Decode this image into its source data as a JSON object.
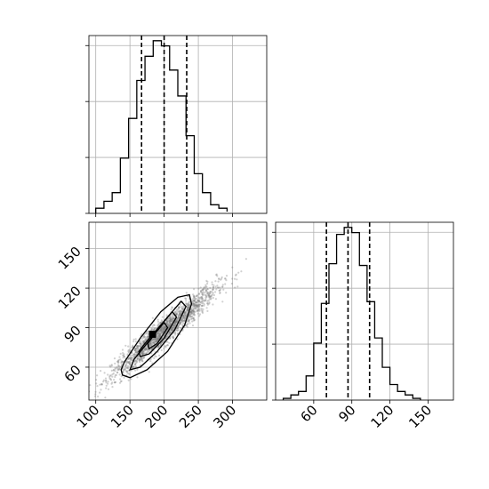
{
  "chart_data": [
    {
      "id": "hist-x",
      "type": "histogram",
      "variable_range": [
        90,
        350
      ],
      "bins": {
        "edges": [
          100,
          112,
          124,
          136,
          148,
          160,
          172,
          184,
          196,
          208,
          220,
          232,
          244,
          256,
          268,
          280,
          292
        ],
        "counts": [
          0.03,
          0.07,
          0.12,
          0.32,
          0.55,
          0.77,
          0.91,
          1.0,
          0.97,
          0.83,
          0.68,
          0.45,
          0.23,
          0.12,
          0.05,
          0.03,
          0.01
        ]
      },
      "quantiles": [
        167,
        200,
        233
      ],
      "xlim": [
        90,
        350
      ],
      "ylim": [
        0,
        1.03
      ],
      "grid": true
    },
    {
      "id": "scatter-xy",
      "type": "scatter",
      "subtype": "2d-density-contour",
      "xlim": [
        90,
        350
      ],
      "ylim": [
        35,
        170
      ],
      "x_ticks": [
        100,
        150,
        200,
        250,
        300
      ],
      "y_ticks": [
        60,
        90,
        120,
        150
      ],
      "point_cloud": {
        "center": [
          200,
          87
        ],
        "std": [
          38,
          17
        ],
        "correlation": 0.95
      },
      "contours": [
        {
          "level": "outer",
          "points": [
            [
              139,
              54
            ],
            [
              150,
              52
            ],
            [
              175,
              58
            ],
            [
              205,
              72
            ],
            [
              230,
              92
            ],
            [
              240,
              108
            ],
            [
              237,
              115
            ],
            [
              220,
              113
            ],
            [
              195,
              102
            ],
            [
              165,
              82
            ],
            [
              142,
              64
            ],
            [
              137,
              58
            ]
          ]
        },
        {
          "level": "mid",
          "points": [
            [
              150,
              58
            ],
            [
              165,
              60
            ],
            [
              190,
              72
            ],
            [
              215,
              88
            ],
            [
              232,
              106
            ],
            [
              225,
              110
            ],
            [
              205,
              98
            ],
            [
              178,
              80
            ],
            [
              156,
              66
            ]
          ]
        },
        {
          "level": "inner",
          "points": [
            [
              165,
              68
            ],
            [
              178,
              70
            ],
            [
              200,
              82
            ],
            [
              218,
              98
            ],
            [
              212,
              102
            ],
            [
              195,
              92
            ],
            [
              172,
              78
            ],
            [
              163,
              72
            ]
          ]
        },
        {
          "level": "core",
          "points": [
            [
              178,
              74
            ],
            [
              190,
              78
            ],
            [
              205,
              90
            ],
            [
              200,
              94
            ],
            [
              186,
              85
            ],
            [
              176,
              78
            ]
          ]
        }
      ],
      "grid": true
    },
    {
      "id": "hist-y",
      "type": "histogram",
      "variable_range": [
        30,
        170
      ],
      "bins": {
        "edges": [
          36,
          42,
          48,
          54,
          60,
          66,
          72,
          78,
          84,
          90,
          96,
          102,
          108,
          114,
          120,
          126,
          132,
          138,
          144
        ],
        "counts": [
          0.01,
          0.03,
          0.05,
          0.14,
          0.33,
          0.56,
          0.79,
          0.96,
          1.0,
          0.97,
          0.78,
          0.57,
          0.36,
          0.19,
          0.09,
          0.05,
          0.03,
          0.01
        ]
      },
      "quantiles": [
        70,
        87,
        104
      ],
      "xlim": [
        30,
        170
      ],
      "ylim": [
        0,
        1.03
      ],
      "x_ticks": [
        60,
        90,
        120,
        150
      ],
      "grid": true
    }
  ]
}
